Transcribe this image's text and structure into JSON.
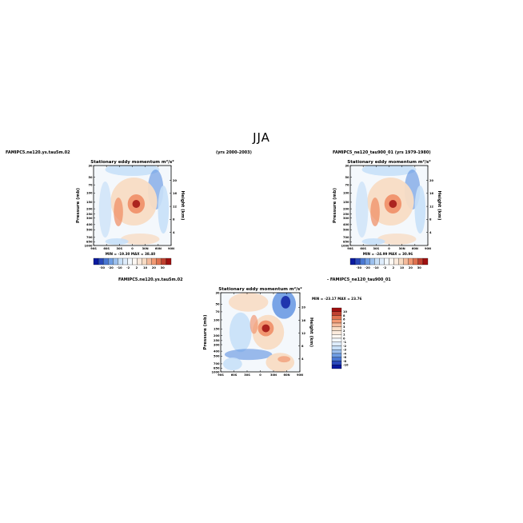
{
  "page": {
    "title": "JJA",
    "left_header": "FAMIPC5.ne120.ys.tau5m.02",
    "middle_header": "(yrs 2000-2003)",
    "right_header": "FAMIPC5_ne120_tau900_01 (yrs 1979-1980)",
    "diff_header_left": "FAMIPC5.ne120.ys.tau5m.02",
    "diff_header_right": "- FAMIPC5_ne120_tau900_01"
  },
  "colors": {
    "blue_dark": "#0a1aa0",
    "blue_mid": "#5a8fe0",
    "blue_light": "#c8e0f8",
    "red_light": "#f8dcc4",
    "red_mid": "#f08a60",
    "red_dark": "#a01010"
  },
  "chart_data": [
    {
      "type": "heatmap",
      "title": "Stationary eddy momentum m²/s²",
      "xlabel": "",
      "ylabel": "Pressure (mb)",
      "y2label": "Height (km)",
      "x_ticks": [
        "90S",
        "60S",
        "30S",
        "0",
        "30N",
        "60N",
        "90N"
      ],
      "y_ticks": [
        "30",
        "50",
        "70",
        "100",
        "150",
        "200",
        "250",
        "300",
        "400",
        "500",
        "700",
        "850",
        "1000"
      ],
      "y2_ticks": [
        "20",
        "16",
        "12",
        "8",
        "4"
      ],
      "colorbar_labels": [
        "-30",
        "-20",
        "-10",
        "-2",
        "2",
        "10",
        "20",
        "30"
      ],
      "min": -19.3,
      "max": 38.4,
      "min_max_text": "MIN = -19.30   MAX = 38.40"
    },
    {
      "type": "heatmap",
      "title": "Stationary eddy momentum m²/s²",
      "xlabel": "",
      "ylabel": "Pressure (mb)",
      "y2label": "Height (km)",
      "x_ticks": [
        "90S",
        "60S",
        "30S",
        "0",
        "30N",
        "60N",
        "90N"
      ],
      "y_ticks": [
        "30",
        "50",
        "70",
        "100",
        "150",
        "200",
        "250",
        "300",
        "400",
        "500",
        "700",
        "850",
        "1000"
      ],
      "y2_ticks": [
        "20",
        "16",
        "12",
        "8",
        "4"
      ],
      "colorbar_labels": [
        "-30",
        "-20",
        "-10",
        "-2",
        "2",
        "10",
        "20",
        "30"
      ],
      "min": -24.99,
      "max": 30.96,
      "min_max_text": "MIN = -24.99   MAX = 30.96"
    },
    {
      "type": "heatmap",
      "title": "Stationary eddy momentum m²/s²",
      "xlabel": "",
      "ylabel": "Pressure (mb)",
      "y2label": "Height (km)",
      "x_ticks": [
        "90S",
        "60S",
        "30S",
        "0",
        "30N",
        "60N",
        "90N"
      ],
      "y_ticks": [
        "30",
        "50",
        "70",
        "100",
        "150",
        "200",
        "250",
        "300",
        "400",
        "500",
        "700",
        "850",
        "1000"
      ],
      "y2_ticks": [
        "20",
        "16",
        "12",
        "8",
        "4"
      ],
      "colorbar_labels": [
        "10",
        "8",
        "6",
        "4",
        "3",
        "2",
        "1",
        "0",
        "-1",
        "-2",
        "-3",
        "-4",
        "-6",
        "-8",
        "-10"
      ],
      "min": -23.17,
      "max": 23.76,
      "min_max_text": "MIN = -23.17   MAX = 23.76"
    }
  ]
}
